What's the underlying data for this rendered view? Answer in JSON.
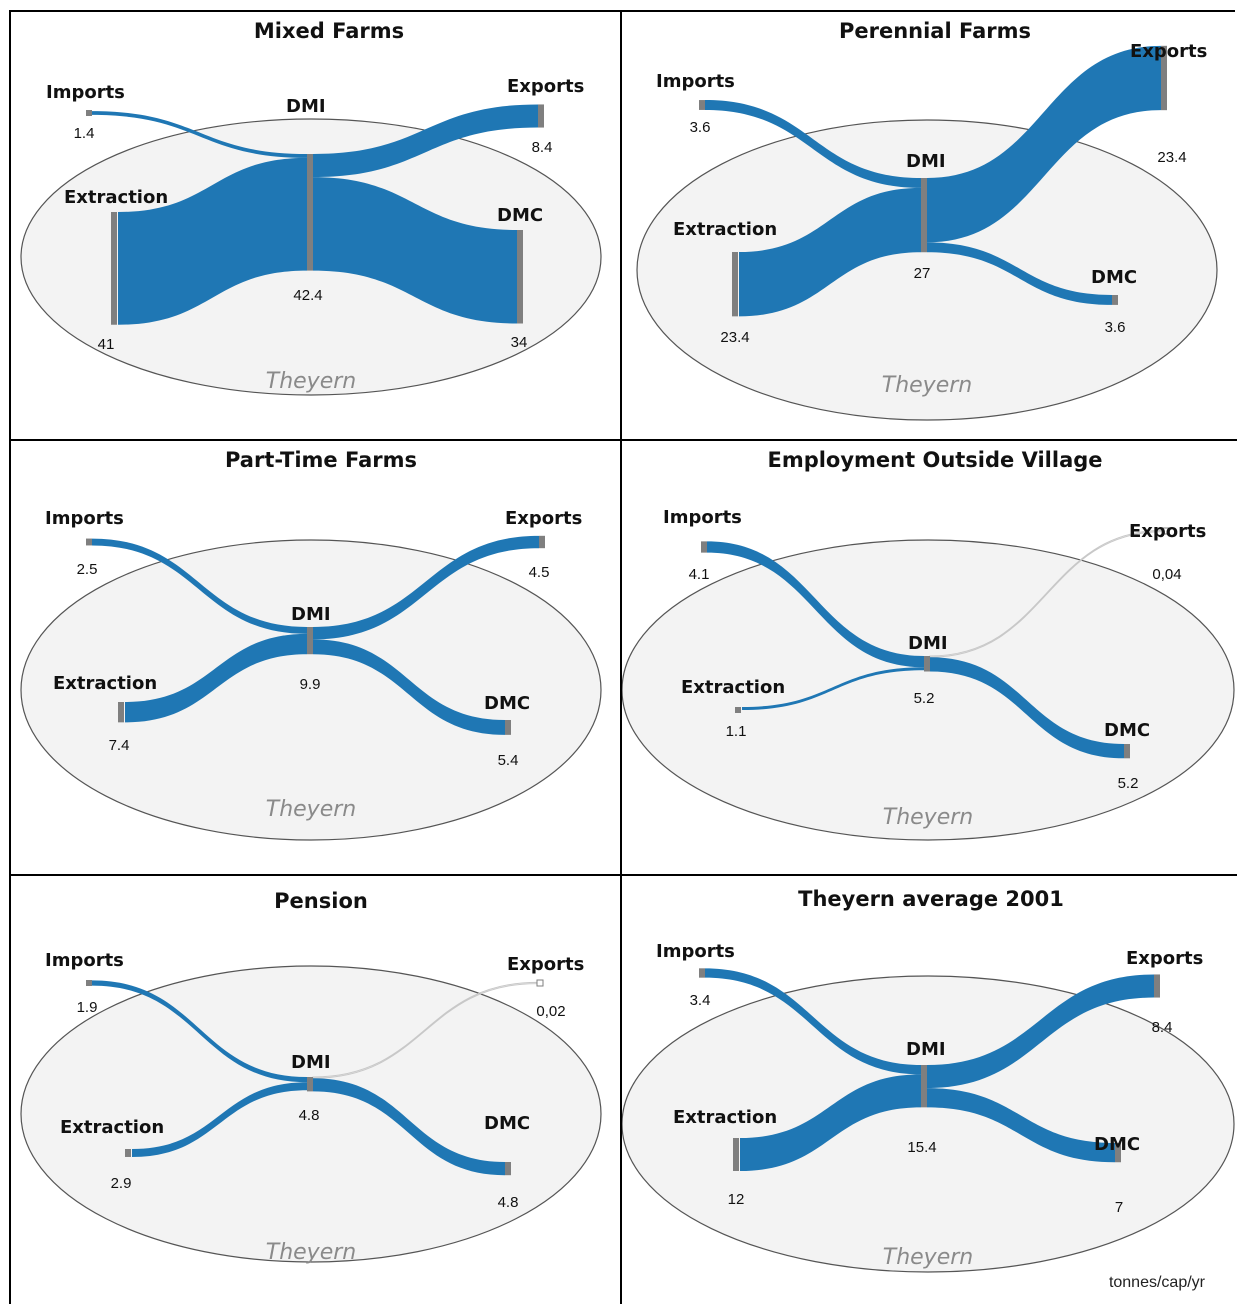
{
  "units": "tonnes/cap/yr",
  "colors": {
    "flow": "#1f77b4",
    "node": "#7f7f7f",
    "ellipse_fill": "#f3f3f3",
    "ellipse_stroke": "#555555",
    "region_text": "#8a8a8a"
  },
  "chart_data": [
    {
      "type": "sankey",
      "title": "Mixed Farms",
      "region": "Theyern",
      "node_labels": {
        "imports": "Imports",
        "extraction": "Extraction",
        "dmi": "DMI",
        "exports": "Exports",
        "dmc": "DMC"
      },
      "values": {
        "imports": "1.4",
        "extraction": "41",
        "dmi": "42.4",
        "exports": "8.4",
        "dmc": "34"
      }
    },
    {
      "type": "sankey",
      "title": "Perennial Farms",
      "region": "Theyern",
      "node_labels": {
        "imports": "Imports",
        "extraction": "Extraction",
        "dmi": "DMI",
        "exports": "Exports",
        "dmc": "DMC"
      },
      "values": {
        "imports": "3.6",
        "extraction": "23.4",
        "dmi": "27",
        "exports": "23.4",
        "dmc": "3.6"
      }
    },
    {
      "type": "sankey",
      "title": "Part-Time Farms",
      "region": "Theyern",
      "node_labels": {
        "imports": "Imports",
        "extraction": "Extraction",
        "dmi": "DMI",
        "exports": "Exports",
        "dmc": "DMC"
      },
      "values": {
        "imports": "2.5",
        "extraction": "7.4",
        "dmi": "9.9",
        "exports": "4.5",
        "dmc": "5.4"
      }
    },
    {
      "type": "sankey",
      "title": "Employment Outside Village",
      "region": "Theyern",
      "node_labels": {
        "imports": "Imports",
        "extraction": "Extraction",
        "dmi": "DMI",
        "exports": "Exports",
        "dmc": "DMC"
      },
      "values": {
        "imports": "4.1",
        "extraction": "1.1",
        "dmi": "5.2",
        "exports": "0,04",
        "dmc": "5.2"
      }
    },
    {
      "type": "sankey",
      "title": "Pension",
      "region": "Theyern",
      "node_labels": {
        "imports": "Imports",
        "extraction": "Extraction",
        "dmi": "DMI",
        "exports": "Exports",
        "dmc": "DMC"
      },
      "values": {
        "imports": "1.9",
        "extraction": "2.9",
        "dmi": "4.8",
        "exports": "0,02",
        "dmc": "4.8"
      }
    },
    {
      "type": "sankey",
      "title": "Theyern average 2001",
      "region": "Theyern",
      "node_labels": {
        "imports": "Imports",
        "extraction": "Extraction",
        "dmi": "DMI",
        "exports": "Exports",
        "dmc": "DMC"
      },
      "values": {
        "imports": "3.4",
        "extraction": "12",
        "dmi": "15.4",
        "exports": "8.4",
        "dmc": "7"
      }
    }
  ]
}
